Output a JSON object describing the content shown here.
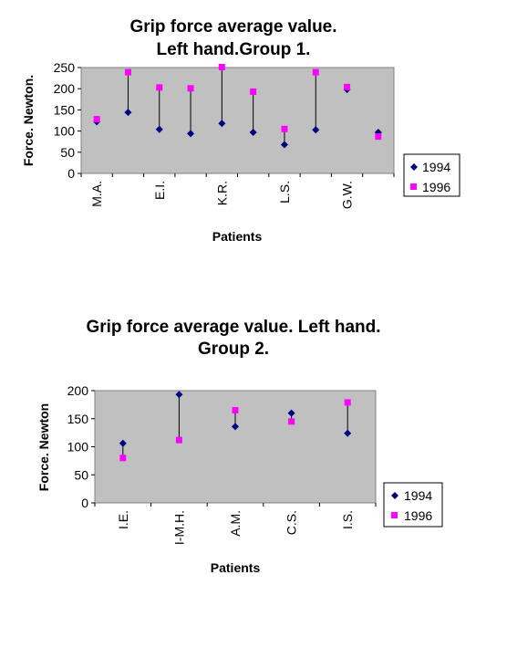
{
  "chart_data": [
    {
      "type": "scatter",
      "title_lines": [
        "Grip force average value.",
        "Left hand.Group 1."
      ],
      "xlabel": "Patients",
      "ylabel": "Force. Newton.",
      "ylim": [
        0,
        250
      ],
      "yticks": [
        0,
        50,
        100,
        150,
        200,
        250
      ],
      "grid": false,
      "legend_position": "right",
      "x_tick_labels": [
        "M.A.",
        "E.I.",
        "K.R.",
        "L.S.",
        "G.W."
      ],
      "x_tick_label_positions": [
        1,
        3,
        5,
        7,
        9
      ],
      "n_points": 10,
      "series": [
        {
          "name": "1994",
          "marker": "diamond",
          "color": "#000080",
          "values": [
            122,
            144,
            104,
            94,
            118,
            97,
            68,
            103,
            198,
            97
          ]
        },
        {
          "name": "1996",
          "marker": "square",
          "color": "#ff00ff",
          "values": [
            128,
            239,
            203,
            201,
            251,
            193,
            105,
            239,
            204,
            87
          ]
        }
      ],
      "plot_background": "#c0c0c0"
    },
    {
      "type": "scatter",
      "title_lines": [
        "Grip force average value. Left hand.",
        "Group 2."
      ],
      "xlabel": "Patients",
      "ylabel": "Force. Newton",
      "ylim": [
        0,
        200
      ],
      "yticks": [
        0,
        50,
        100,
        150,
        200
      ],
      "grid": false,
      "legend_position": "right",
      "x_tick_labels": [
        "I.E.",
        "I-M.H.",
        "A.M.",
        "C.S.",
        "I.S."
      ],
      "x_tick_label_positions": [
        1,
        2,
        3,
        4,
        5
      ],
      "n_points": 5,
      "series": [
        {
          "name": "1994",
          "marker": "diamond",
          "color": "#000080",
          "values": [
            106,
            193,
            136,
            160,
            124
          ]
        },
        {
          "name": "1996",
          "marker": "square",
          "color": "#ff00ff",
          "values": [
            80,
            112,
            165,
            145,
            179
          ]
        }
      ],
      "plot_background": "#c0c0c0"
    }
  ]
}
